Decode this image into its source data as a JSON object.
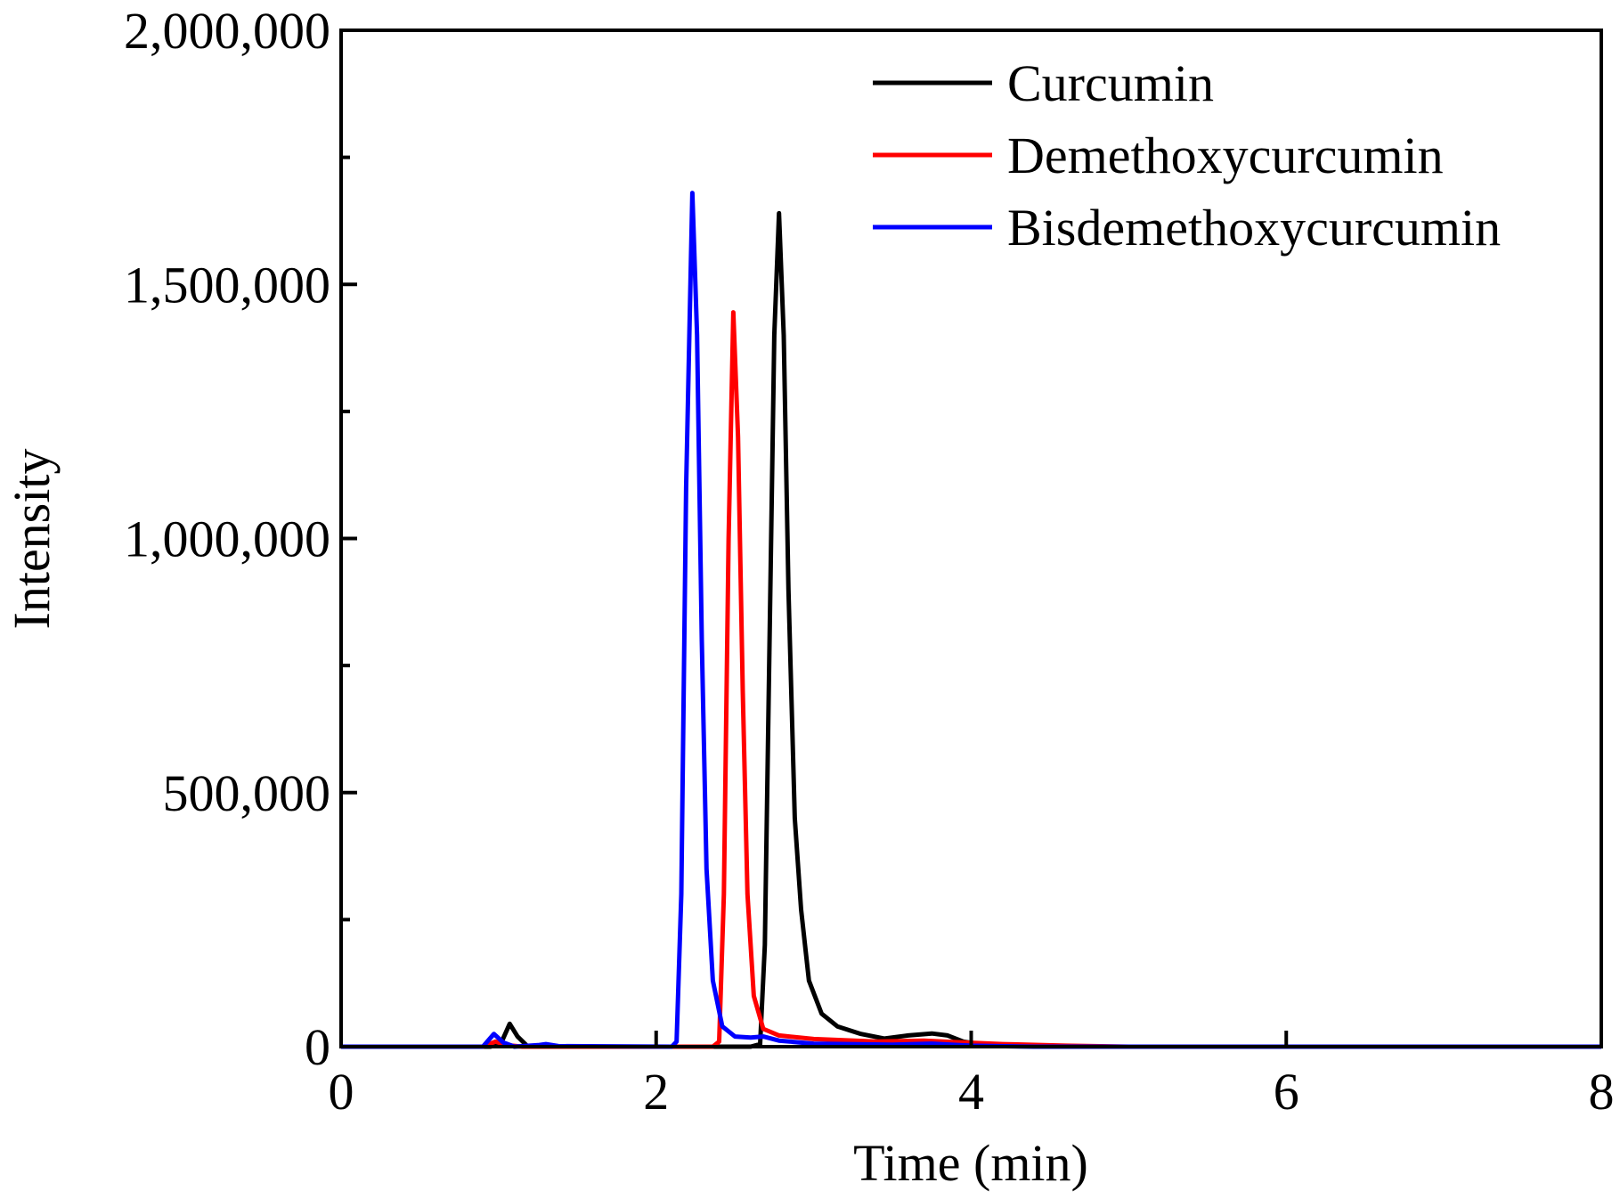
{
  "chart_data": {
    "type": "line",
    "title": "",
    "xlabel": "Time (min)",
    "ylabel": "Intensity",
    "xlim": [
      0,
      8
    ],
    "ylim": [
      0,
      2000000
    ],
    "xticks": [
      0,
      2,
      4,
      6,
      8
    ],
    "xtick_labels": [
      "0",
      "2",
      "4",
      "6",
      "8"
    ],
    "yticks": [
      0,
      500000,
      1000000,
      1500000,
      2000000
    ],
    "ytick_labels": [
      "0",
      "500,000",
      "1,000,000",
      "1,500,000",
      "2,000,000"
    ],
    "grid": false,
    "legend_position": "top-right",
    "series": [
      {
        "name": "Curcumin",
        "color": "#000000",
        "points": [
          [
            0,
            0
          ],
          [
            0.95,
            0
          ],
          [
            1.02,
            10000
          ],
          [
            1.07,
            45000
          ],
          [
            1.12,
            20000
          ],
          [
            1.18,
            2000
          ],
          [
            1.3,
            0
          ],
          [
            2.6,
            0
          ],
          [
            2.66,
            5000
          ],
          [
            2.69,
            200000
          ],
          [
            2.72,
            800000
          ],
          [
            2.75,
            1400000
          ],
          [
            2.78,
            1640000
          ],
          [
            2.81,
            1400000
          ],
          [
            2.84,
            900000
          ],
          [
            2.88,
            450000
          ],
          [
            2.92,
            270000
          ],
          [
            2.97,
            130000
          ],
          [
            3.05,
            65000
          ],
          [
            3.15,
            40000
          ],
          [
            3.3,
            25000
          ],
          [
            3.45,
            16000
          ],
          [
            3.6,
            22000
          ],
          [
            3.75,
            26000
          ],
          [
            3.85,
            22000
          ],
          [
            3.95,
            10000
          ],
          [
            4.1,
            3000
          ],
          [
            4.5,
            0
          ],
          [
            8,
            0
          ]
        ]
      },
      {
        "name": "Demethoxycurcumin",
        "color": "#ff0000",
        "points": [
          [
            0,
            0
          ],
          [
            0.9,
            0
          ],
          [
            0.98,
            10000
          ],
          [
            1.05,
            3000
          ],
          [
            1.15,
            0
          ],
          [
            2.36,
            0
          ],
          [
            2.4,
            10000
          ],
          [
            2.43,
            300000
          ],
          [
            2.46,
            1000000
          ],
          [
            2.49,
            1445000
          ],
          [
            2.52,
            1200000
          ],
          [
            2.55,
            700000
          ],
          [
            2.58,
            300000
          ],
          [
            2.62,
            100000
          ],
          [
            2.68,
            35000
          ],
          [
            2.78,
            22000
          ],
          [
            3.0,
            15000
          ],
          [
            3.4,
            10000
          ],
          [
            3.7,
            12000
          ],
          [
            3.9,
            9000
          ],
          [
            4.2,
            5000
          ],
          [
            4.6,
            2000
          ],
          [
            5.0,
            0
          ],
          [
            8,
            0
          ]
        ]
      },
      {
        "name": "Bisdemethoxycurcumin",
        "color": "#0000ff",
        "points": [
          [
            0,
            0
          ],
          [
            0.9,
            0
          ],
          [
            0.97,
            25000
          ],
          [
            1.03,
            8000
          ],
          [
            1.1,
            0
          ],
          [
            1.25,
            3000
          ],
          [
            1.3,
            5000
          ],
          [
            1.38,
            1000
          ],
          [
            2.1,
            0
          ],
          [
            2.13,
            10000
          ],
          [
            2.16,
            300000
          ],
          [
            2.19,
            1100000
          ],
          [
            2.23,
            1680000
          ],
          [
            2.26,
            1400000
          ],
          [
            2.29,
            800000
          ],
          [
            2.32,
            350000
          ],
          [
            2.36,
            130000
          ],
          [
            2.42,
            40000
          ],
          [
            2.5,
            20000
          ],
          [
            2.6,
            18000
          ],
          [
            2.68,
            20000
          ],
          [
            2.78,
            12000
          ],
          [
            3.0,
            6000
          ],
          [
            3.5,
            4000
          ],
          [
            3.75,
            6000
          ],
          [
            4.0,
            2000
          ],
          [
            4.4,
            0
          ],
          [
            8,
            0
          ]
        ]
      }
    ]
  }
}
